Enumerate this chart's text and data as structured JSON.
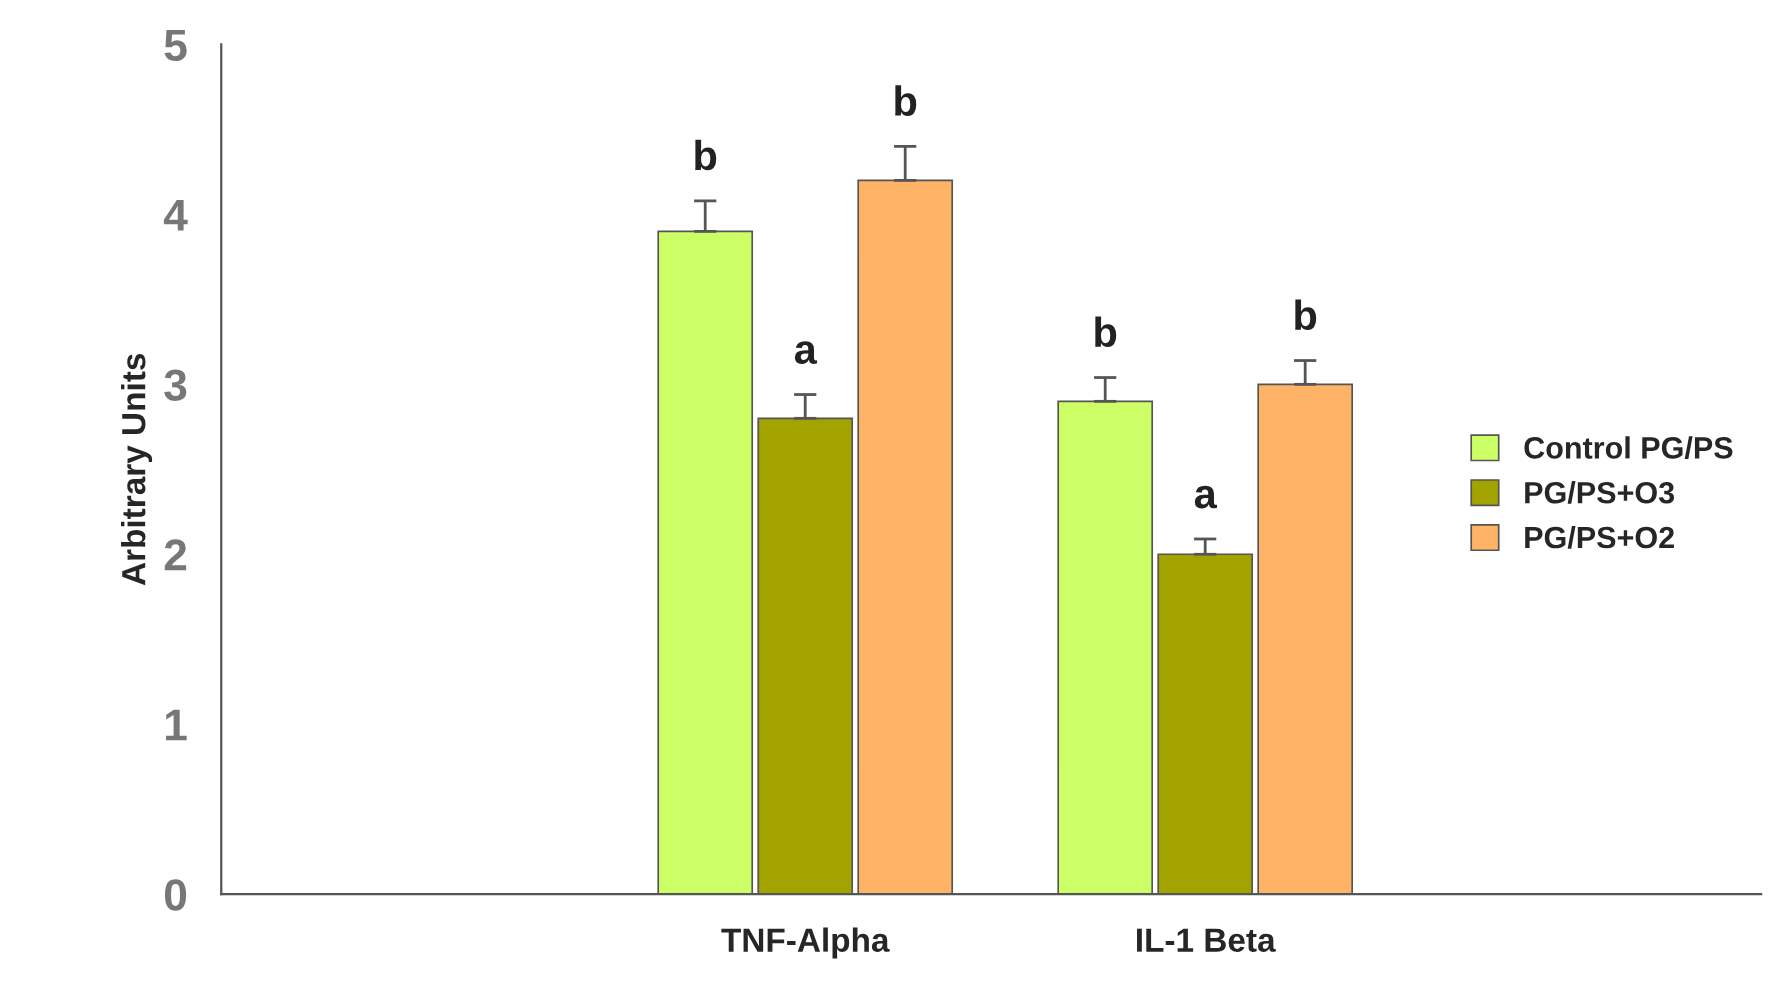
{
  "chart_data": {
    "type": "bar",
    "ylabel": "Arbitrary Units",
    "categories": [
      "TNF-Alpha",
      "IL-1 Beta"
    ],
    "series": [
      {
        "name": "Control PG/PS",
        "color": "#ccff66",
        "values": [
          3.9,
          2.9
        ],
        "errors": [
          [
            3.9,
            4.08
          ],
          [
            2.9,
            3.04
          ]
        ]
      },
      {
        "name": "PG/PS+O3",
        "color": "#a3a300",
        "values": [
          2.8,
          2.0
        ],
        "errors": [
          [
            2.8,
            2.94
          ],
          [
            2.0,
            2.09
          ]
        ]
      },
      {
        "name": "PG/PS+O2",
        "color": "#ffb366",
        "values": [
          4.2,
          3.0
        ],
        "errors": [
          [
            4.2,
            4.4
          ],
          [
            3.0,
            3.14
          ]
        ]
      }
    ],
    "ylim": [
      0,
      5
    ],
    "yticks": [
      0,
      1,
      2,
      3,
      4,
      5
    ],
    "grid": false,
    "legend": "right",
    "annotations": [
      "b",
      "a",
      "b",
      "b",
      "a",
      "b"
    ]
  }
}
